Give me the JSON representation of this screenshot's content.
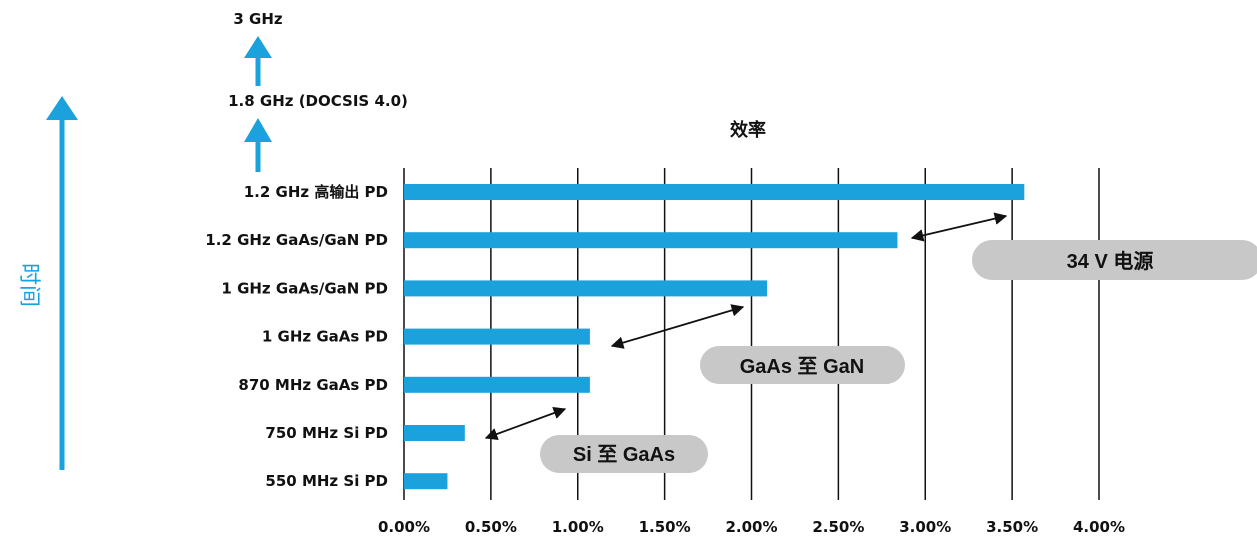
{
  "colors": {
    "bar": "#1ba2dc",
    "arrow": "#1ba2dc",
    "pill": "#c8c8c8",
    "grid": "#111111"
  },
  "time_label": "时间",
  "freq_steps": [
    "3 GHz",
    "1.8 GHz (DOCSIS 4.0)"
  ],
  "chart_data": {
    "type": "bar",
    "orientation": "horizontal",
    "title": "效率",
    "categories": [
      "1.2 GHz 高输出 PD",
      "1.2 GHz GaAs/GaN PD",
      "1 GHz GaAs/GaN PD",
      "1 GHz GaAs PD",
      "870 MHz GaAs PD",
      "750 MHz Si PD",
      "550 MHz Si PD"
    ],
    "values": [
      3.57,
      2.84,
      2.09,
      1.07,
      1.07,
      0.35,
      0.25
    ],
    "unit": "%",
    "xlim": [
      0,
      4.0
    ],
    "ticks": [
      "0.00%",
      "0.50%",
      "1.00%",
      "1.50%",
      "2.00%",
      "2.50%",
      "3.00%",
      "3.50%",
      "4.00%"
    ],
    "grid": true,
    "annotations": [
      {
        "text": "34 V  电源"
      },
      {
        "text": "GaAs  至  GaN"
      },
      {
        "text": "Si  至  GaAs"
      }
    ]
  }
}
